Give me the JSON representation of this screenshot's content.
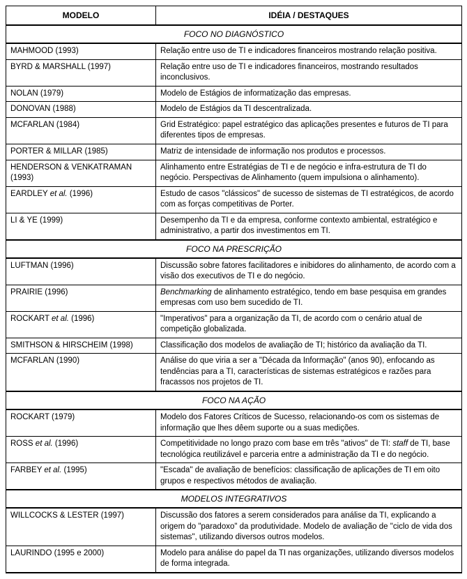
{
  "headers": {
    "model": "MODELO",
    "idea": "IDÉIA / DESTAQUES"
  },
  "sections": [
    {
      "title": "FOCO NO DIAGNÓSTICO",
      "rows": [
        {
          "model": "MAHMOOD (1993)",
          "idea": "Relação entre uso de TI e indicadores financeiros mostrando relação positiva."
        },
        {
          "model": "BYRD & MARSHALL (1997)",
          "idea": "Relação entre uso de TI e indicadores financeiros, mostrando resultados inconclusivos."
        },
        {
          "model": "NOLAN (1979)",
          "idea": "Modelo de Estágios de informatização das empresas."
        },
        {
          "model": "DONOVAN (1988)",
          "idea": "Modelo de Estágios da TI descentralizada."
        },
        {
          "model": "MCFARLAN (1984)",
          "idea": "Grid Estratégico: papel estratégico das aplicações presentes e futuros de TI para diferentes tipos de empresas."
        },
        {
          "model": "PORTER & MILLAR (1985)",
          "idea": "Matriz de intensidade de informação nos produtos e processos."
        },
        {
          "model": "HENDERSON & VENKATRAMAN (1993)",
          "idea": "Alinhamento entre Estratégias de TI e de negócio e infra-estrutura de TI do negócio. Perspectivas de Alinhamento (quem impulsiona o alinhamento)."
        },
        {
          "model": "EARDLEY <em class=\"et-al\">et al.</em> (1996)",
          "idea": "Estudo de casos \"clássicos\" de sucesso de sistemas de TI estratégicos, de acordo com as forças competitivas de Porter."
        },
        {
          "model": "LI & YE (1999)",
          "idea": "Desempenho da TI e da empresa, conforme contexto ambiental, estratégico e administrativo, a partir dos investimentos em TI."
        }
      ]
    },
    {
      "title": "FOCO NA PRESCRIÇÃO",
      "rows": [
        {
          "model": "LUFTMAN (1996)",
          "idea": "Discussão sobre fatores facilitadores e inibidores do alinhamento, de acordo com a visão dos executivos de TI e do negócio."
        },
        {
          "model": "PRAIRIE (1996)",
          "idea": "<em>Benchmarking</em> de alinhamento estratégico, tendo em base pesquisa em grandes empresas com uso bem sucedido de TI."
        },
        {
          "model": "ROCKART <em class=\"et-al\">et al.</em> (1996)",
          "idea": "\"Imperativos\" para a organização da TI, de acordo com o cenário atual de competição globalizada."
        },
        {
          "model": "SMITHSON & HIRSCHEIM (1998)",
          "idea": "Classificação dos modelos de avaliação de TI; histórico da avaliação da TI."
        },
        {
          "model": "MCFARLAN (1990)",
          "idea": "Análise do que viria a ser a \"Década da Informação\" (anos 90), enfocando as tendências para a TI, características de sistemas estratégicos e razões para fracassos nos projetos de TI."
        }
      ]
    },
    {
      "title": "FOCO NA AÇÃO",
      "rows": [
        {
          "model": "ROCKART (1979)",
          "idea": "Modelo dos Fatores Críticos de Sucesso, relacionando-os com os sistemas de informação que lhes dêem suporte ou a suas medições."
        },
        {
          "model": "ROSS <em class=\"et-al\">et al.</em> (1996)",
          "idea": "Competitividade no longo prazo com base em três \"ativos\" de TI: <em>staff</em> de TI, base tecnológica reutilizável e parceria entre a administração da TI e do negócio."
        },
        {
          "model": "FARBEY <em class=\"et-al\">et al.</em> (1995)",
          "idea": "\"Escada\" de avaliação de benefícios: classificação de aplicações de TI em oito grupos e respectivos métodos de avaliação."
        }
      ]
    },
    {
      "title": "MODELOS INTEGRATIVOS",
      "rows": [
        {
          "model": "WILLCOCKS & LESTER (1997)",
          "idea": "Discussão dos fatores a serem considerados para análise da TI, explicando a origem do \"paradoxo\" da produtividade. Modelo de avaliação de \"ciclo de vida dos sistemas\", utilizando diversos outros modelos."
        },
        {
          "model": "LAURINDO (1995 e 2000)",
          "idea": "Modelo para análise do papel da TI nas organizações, utilizando diversos modelos de forma integrada."
        }
      ]
    }
  ]
}
